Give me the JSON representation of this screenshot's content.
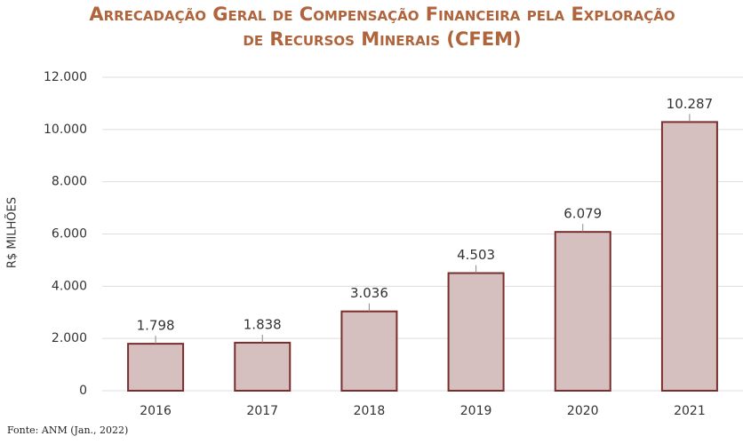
{
  "chart_data": {
    "type": "bar",
    "title": "Arrecadação Geral de Compensação Financeira pela Exploração de Recursos Minerais (CFEM)",
    "y_label": "R$ MILHÕES",
    "source": "Fonte: ANM (Jan., 2022)",
    "categories": [
      "2016",
      "2017",
      "2018",
      "2019",
      "2020",
      "2021"
    ],
    "values": [
      1798,
      1838,
      3036,
      4503,
      6079,
      10287
    ],
    "value_labels": [
      "1.798",
      "1.838",
      "3.036",
      "4.503",
      "6.079",
      "10.287"
    ],
    "color": "#d5bfbf",
    "edge_color": "#7a2e2e",
    "ylim": [
      0,
      12000
    ],
    "yticks": [
      0,
      {
        "value": 2000,
        "label": "2.000"
      },
      {
        "value": 4000,
        "label": "4.000"
      },
      {
        "value": 6000,
        "label": "6.000"
      },
      {
        "value": 8000,
        "label": "8.000"
      },
      {
        "value": 10000,
        "label": "10.000"
      },
      {
        "value": 12000,
        "label": "12.000"
      }
    ],
    "grid": true
  }
}
